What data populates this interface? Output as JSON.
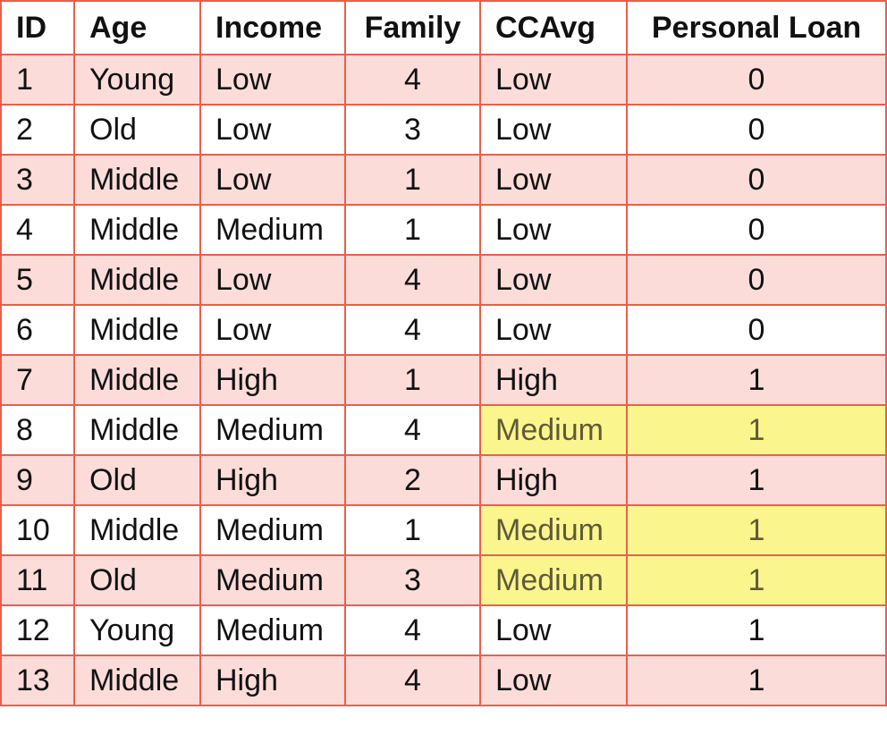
{
  "table": {
    "headers": [
      "ID",
      "Age",
      "Income",
      "Family",
      "CCAvg",
      "Personal Loan"
    ],
    "rows": [
      {
        "id": "1",
        "age": "Young",
        "income": "Low",
        "family": "4",
        "ccavg": "Low",
        "loan": "0",
        "highlighted": false
      },
      {
        "id": "2",
        "age": "Old",
        "income": "Low",
        "family": "3",
        "ccavg": "Low",
        "loan": "0",
        "highlighted": false
      },
      {
        "id": "3",
        "age": "Middle",
        "income": "Low",
        "family": "1",
        "ccavg": "Low",
        "loan": "0",
        "highlighted": false
      },
      {
        "id": "4",
        "age": "Middle",
        "income": "Medium",
        "family": "1",
        "ccavg": "Low",
        "loan": "0",
        "highlighted": false
      },
      {
        "id": "5",
        "age": "Middle",
        "income": "Low",
        "family": "4",
        "ccavg": "Low",
        "loan": "0",
        "highlighted": false
      },
      {
        "id": "6",
        "age": "Middle",
        "income": "Low",
        "family": "4",
        "ccavg": "Low",
        "loan": "0",
        "highlighted": false
      },
      {
        "id": "7",
        "age": "Middle",
        "income": "High",
        "family": "1",
        "ccavg": "High",
        "loan": "1",
        "highlighted": false
      },
      {
        "id": "8",
        "age": "Middle",
        "income": "Medium",
        "family": "4",
        "ccavg": "Medium",
        "loan": "1",
        "highlighted": true
      },
      {
        "id": "9",
        "age": "Old",
        "income": "High",
        "family": "2",
        "ccavg": "High",
        "loan": "1",
        "highlighted": false
      },
      {
        "id": "10",
        "age": "Middle",
        "income": "Medium",
        "family": "1",
        "ccavg": "Medium",
        "loan": "1",
        "highlighted": true
      },
      {
        "id": "11",
        "age": "Old",
        "income": "Medium",
        "family": "3",
        "ccavg": "Medium",
        "loan": "1",
        "highlighted": true
      },
      {
        "id": "12",
        "age": "Young",
        "income": "Medium",
        "family": "4",
        "ccavg": "Low",
        "loan": "1",
        "highlighted": false
      },
      {
        "id": "13",
        "age": "Middle",
        "income": "High",
        "family": "4",
        "ccavg": "Low",
        "loan": "1",
        "highlighted": false
      }
    ]
  },
  "colors": {
    "border": "#e8604c",
    "shaded_row": "#fcdcd9",
    "highlight": "#fbf58e"
  }
}
